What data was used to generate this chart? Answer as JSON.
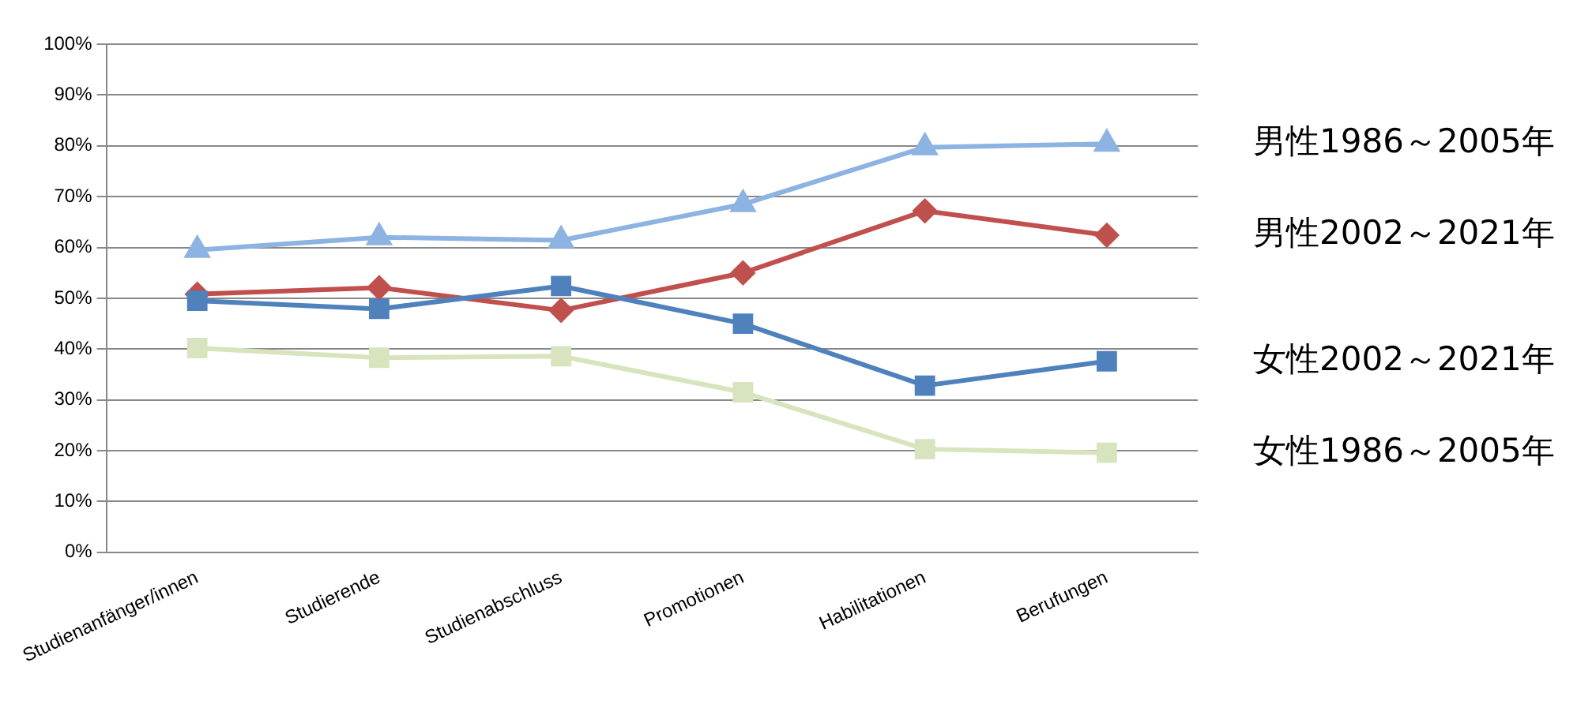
{
  "chart_data": {
    "type": "line",
    "categories": [
      "Studienanfänger/innen",
      "Studierende",
      "Studienabschluss",
      "Promotionen",
      "Habilitationen",
      "Berufungen"
    ],
    "series": [
      {
        "name": "男性1986～2005年",
        "color": "#8db3e2",
        "marker": "triangle",
        "values": [
          59.5,
          62,
          61.4,
          68.5,
          79.7,
          80.4
        ]
      },
      {
        "name": "男性2002～2021年",
        "color": "#c0504d",
        "marker": "diamond",
        "values": [
          50.8,
          52.1,
          47.6,
          55,
          67.2,
          62.4
        ]
      },
      {
        "name": "女性2002～2021年",
        "color": "#4f81bd",
        "marker": "square",
        "values": [
          49.5,
          47.9,
          52.4,
          45,
          32.8,
          37.6
        ]
      },
      {
        "name": "女性1986～2005年",
        "color": "#d7e4bd",
        "marker": "square",
        "values": [
          40.2,
          38.3,
          38.6,
          31.5,
          20.3,
          19.6
        ]
      }
    ],
    "ylim": [
      0,
      100
    ],
    "yticks": [
      {
        "value": 0,
        "label": "0%"
      },
      {
        "value": 10,
        "label": "10%"
      },
      {
        "value": 20,
        "label": "20%"
      },
      {
        "value": 30,
        "label": "30%"
      },
      {
        "value": 40,
        "label": "40%"
      },
      {
        "value": 50,
        "label": "50%"
      },
      {
        "value": 60,
        "label": "60%"
      },
      {
        "value": 70,
        "label": "70%"
      },
      {
        "value": 80,
        "label": "80%"
      },
      {
        "value": 90,
        "label": "90%"
      },
      {
        "value": 100,
        "label": "100%"
      }
    ],
    "grid": "y",
    "legend": "right",
    "line_style": "solid"
  }
}
